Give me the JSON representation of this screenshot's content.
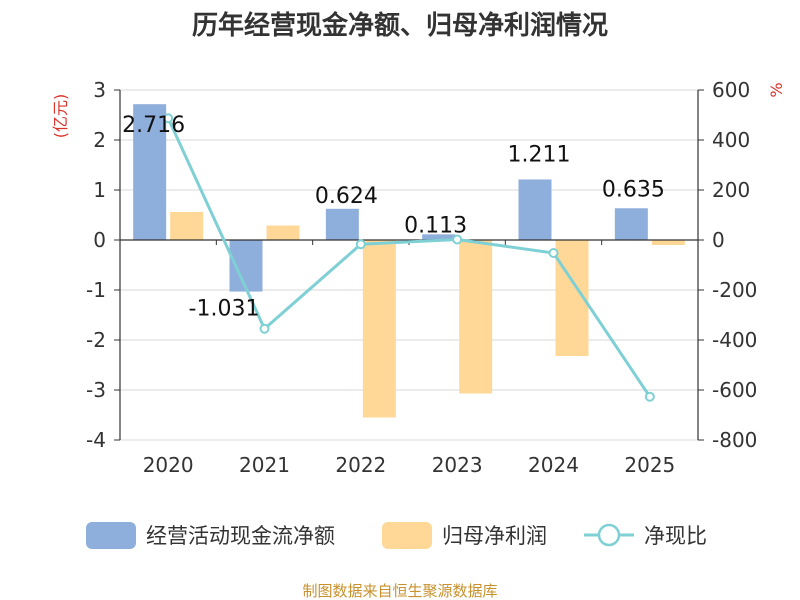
{
  "chart_data": {
    "type": "bar",
    "title": "历年经营现金净额、归母净利润情况",
    "categories": [
      "2020",
      "2021",
      "2022",
      "2023",
      "2024",
      "2025"
    ],
    "y_left": {
      "label": "(亿元)",
      "ylim": [
        -4,
        3
      ],
      "ticks": [
        "3",
        "2",
        "1",
        "0",
        "-1",
        "-2",
        "-3",
        "-4"
      ]
    },
    "y_right": {
      "label": "%",
      "ylim": [
        -800,
        600
      ],
      "ticks": [
        "600",
        "400",
        "200",
        "0",
        "-200",
        "-400",
        "-600",
        "-800"
      ]
    },
    "series": [
      {
        "name": "经营活动现金流净额",
        "type": "bar",
        "axis": "left",
        "color": "#8eaedb",
        "values": [
          2.716,
          -1.031,
          0.624,
          0.113,
          1.211,
          0.635
        ],
        "labels": [
          "2.716",
          "-1.031",
          "0.624",
          "0.113",
          "1.211",
          "0.635"
        ]
      },
      {
        "name": "归母净利润",
        "type": "bar",
        "axis": "left",
        "color": "#ffd898",
        "values": [
          0.56,
          0.29,
          -3.55,
          -3.07,
          -2.32,
          -0.1
        ]
      },
      {
        "name": "净现比",
        "type": "line",
        "axis": "right",
        "color": "#7fd0d4",
        "values": [
          487,
          -355,
          -17,
          2,
          -52,
          -627
        ]
      }
    ],
    "grid": true,
    "legend": "bottom",
    "source": "制图数据来自恒生聚源数据库"
  }
}
